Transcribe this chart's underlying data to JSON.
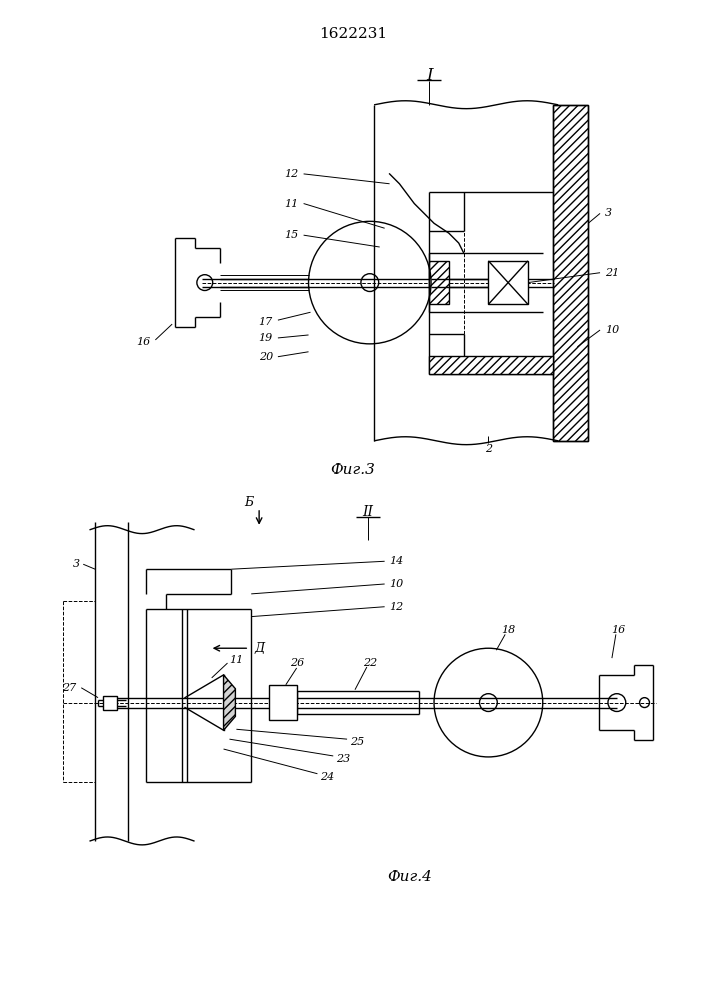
{
  "title": "1622231",
  "title_fontsize": 11,
  "fig3_label": "Фиг.3",
  "fig4_label": "Фиг.4",
  "bg_color": "#ffffff",
  "line_color": "#000000",
  "linewidth": 1.0,
  "thin_lw": 0.7
}
